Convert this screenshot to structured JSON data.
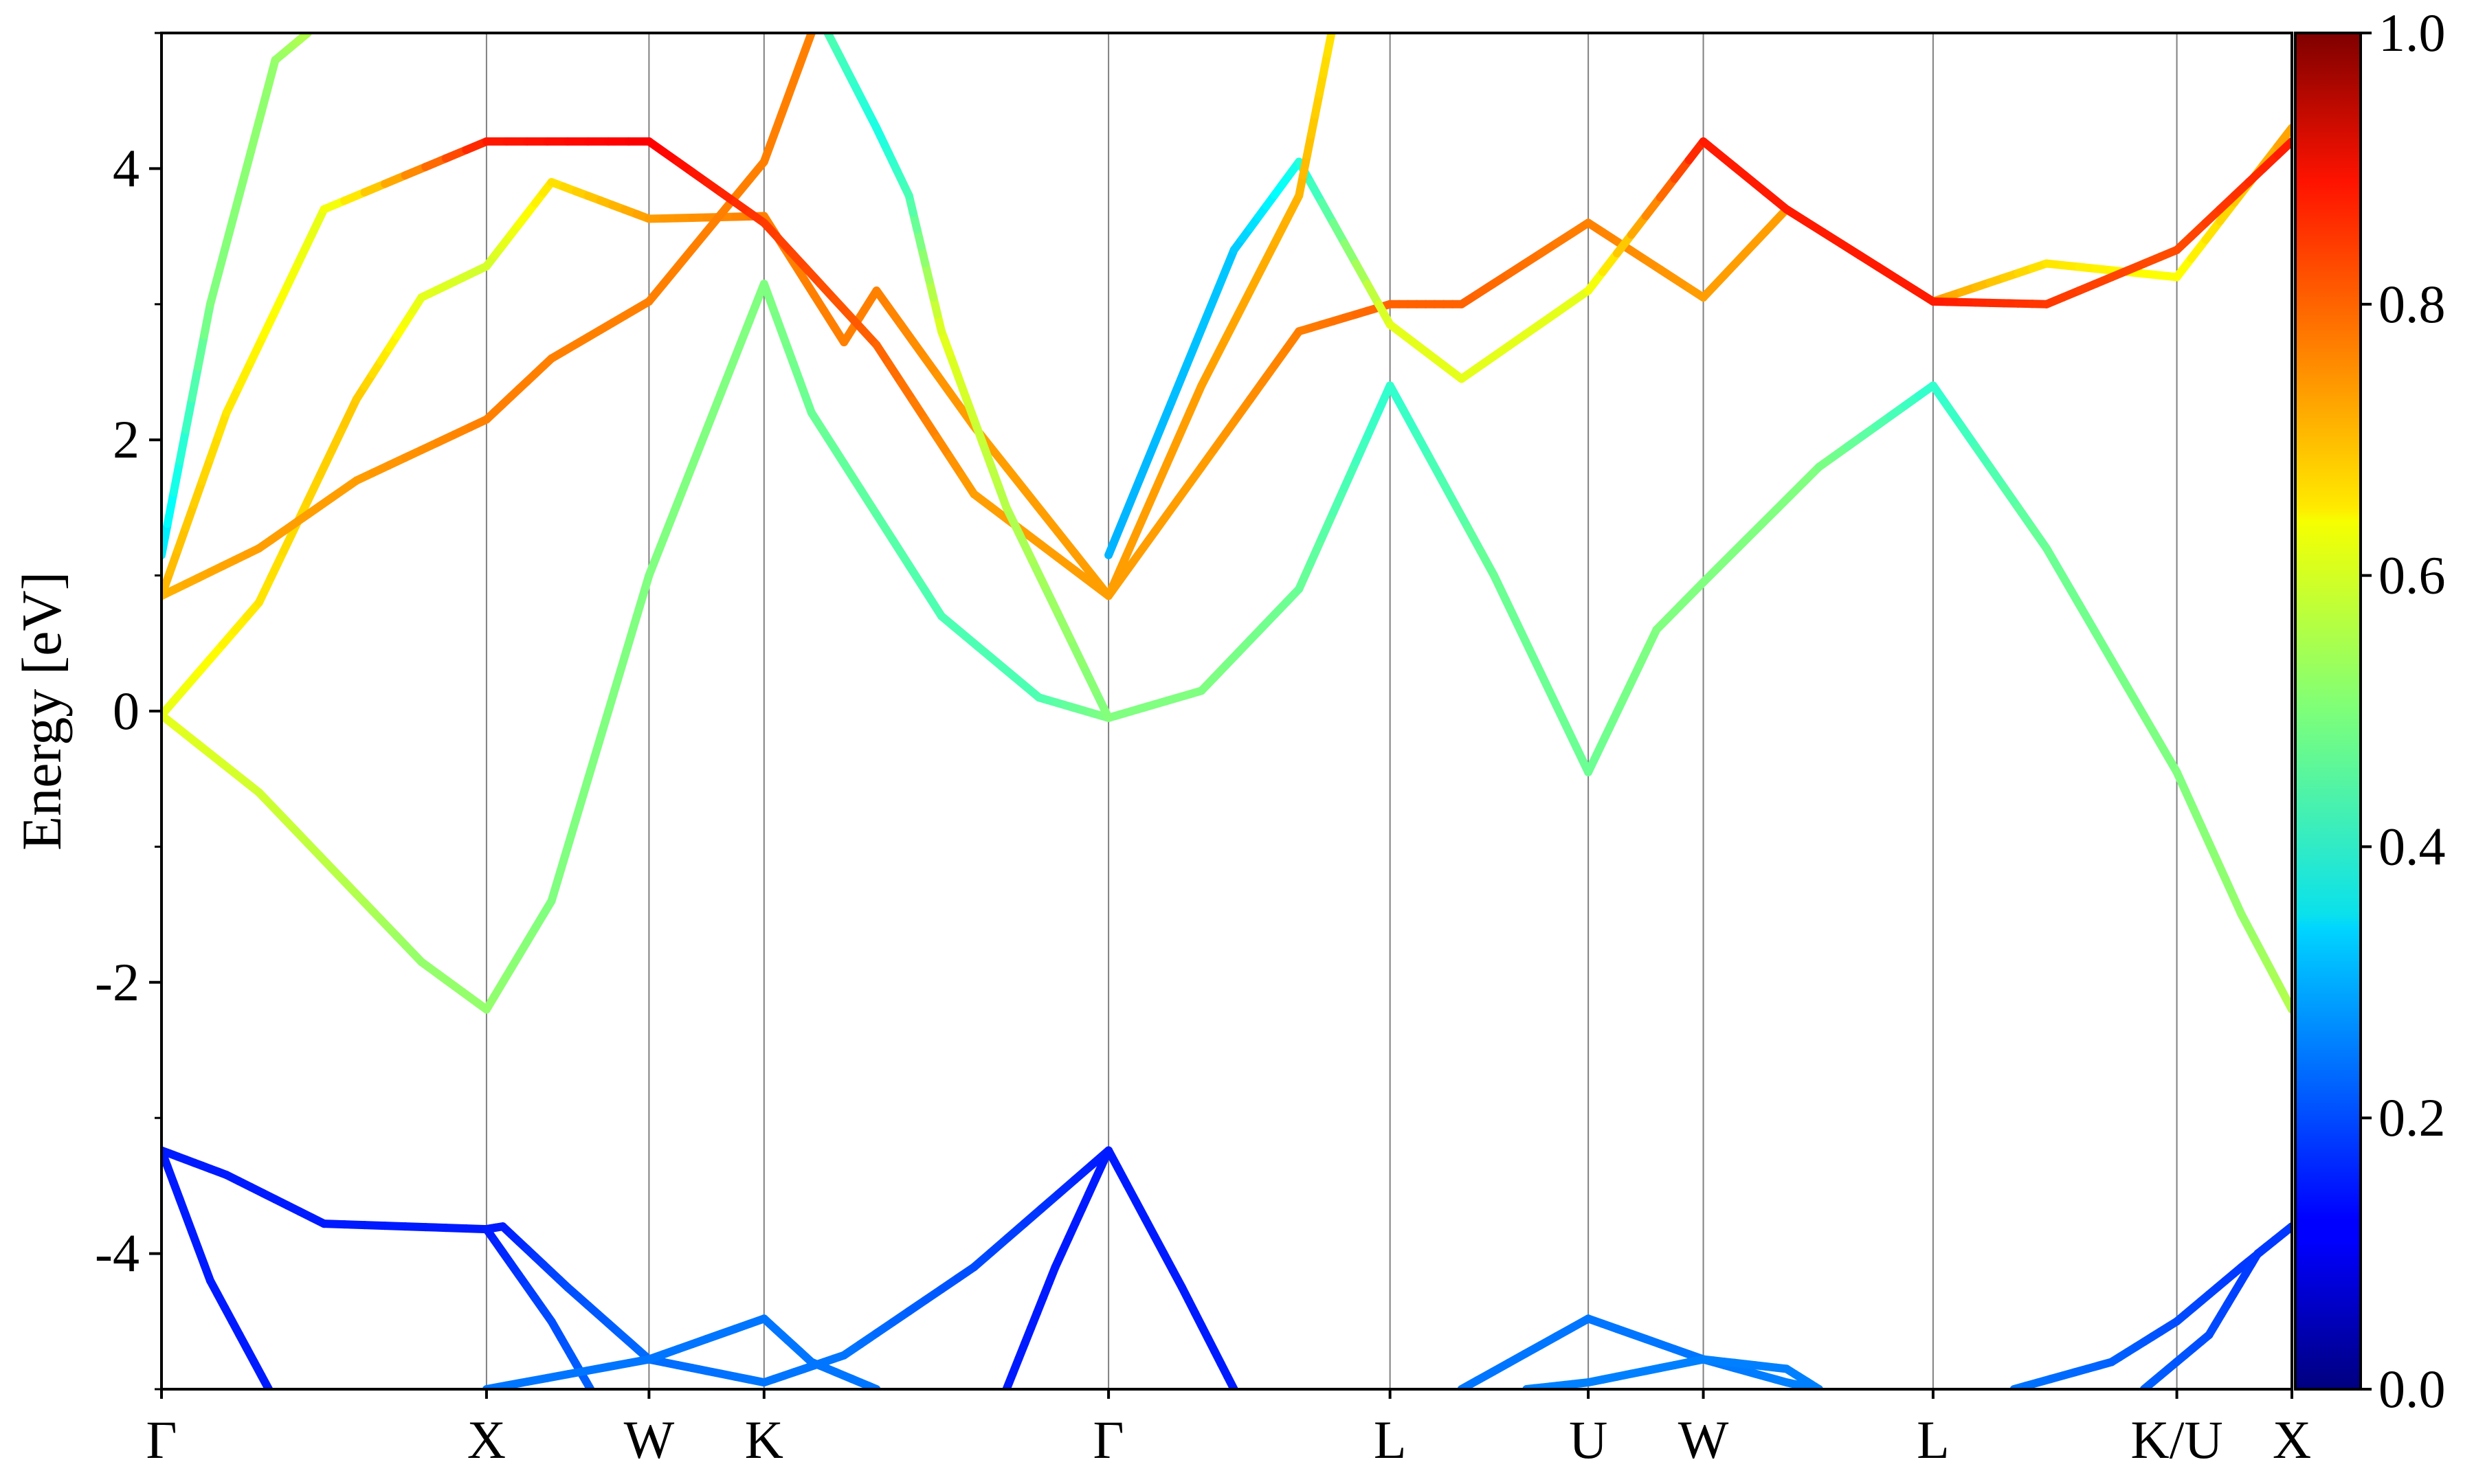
{
  "chart_data": {
    "type": "line",
    "title": "",
    "xlabel": "",
    "ylabel": "Energy [eV]",
    "ylim": [
      -5,
      5
    ],
    "yticks": [
      "-4",
      "-2",
      "0",
      "2",
      "4"
    ],
    "grid": "vertical lines at high-symmetry points",
    "high_symmetry_points": [
      {
        "label": "Γ",
        "k": 0.0
      },
      {
        "label": "X",
        "k": 1.0
      },
      {
        "label": "W",
        "k": 1.5
      },
      {
        "label": "K",
        "k": 1.854
      },
      {
        "label": "Γ",
        "k": 2.914
      },
      {
        "label": "L",
        "k": 3.78
      },
      {
        "label": "U",
        "k": 4.39
      },
      {
        "label": "W",
        "k": 4.744
      },
      {
        "label": "L",
        "k": 5.451
      },
      {
        "label": "K/U",
        "k": 6.201
      },
      {
        "label": "X",
        "k": 6.555
      }
    ],
    "colorbar": {
      "colormap": "jet",
      "range": [
        0.0,
        1.0
      ],
      "ticks": [
        "0.0",
        "0.2",
        "0.4",
        "0.6",
        "0.8",
        "1.0"
      ]
    },
    "series": [
      {
        "values": [
          [
            0.0,
            -3.24,
            0.15
          ],
          [
            0.15,
            -4.2,
            0.15
          ],
          [
            0.33,
            -5.0,
            0.15
          ]
        ]
      },
      {
        "values": [
          [
            0.0,
            -3.24,
            0.15
          ],
          [
            0.2,
            -3.42,
            0.15
          ],
          [
            0.5,
            -3.78,
            0.15
          ],
          [
            1.0,
            -3.82,
            0.15
          ],
          [
            1.05,
            -3.8,
            0.15
          ],
          [
            1.25,
            -4.25,
            0.2
          ],
          [
            1.5,
            -4.78,
            0.23
          ],
          [
            1.854,
            -4.95,
            0.24
          ],
          [
            2.1,
            -4.75,
            0.24
          ],
          [
            2.5,
            -4.1,
            0.2
          ],
          [
            2.914,
            -3.24,
            0.15
          ]
        ]
      },
      {
        "values": [
          [
            1.0,
            -3.82,
            0.15
          ],
          [
            1.2,
            -4.5,
            0.2
          ],
          [
            1.32,
            -5.0,
            0.22
          ]
        ]
      },
      {
        "values": [
          [
            1.0,
            -5.0,
            0.24
          ],
          [
            1.5,
            -4.78,
            0.24
          ],
          [
            1.854,
            -4.48,
            0.24
          ],
          [
            2.0,
            -4.8,
            0.24
          ],
          [
            2.2,
            -5.0,
            0.24
          ]
        ]
      },
      {
        "values": [
          [
            2.914,
            -3.24,
            0.15
          ],
          [
            3.14,
            -4.25,
            0.15
          ],
          [
            3.3,
            -5.0,
            0.15
          ]
        ]
      },
      {
        "values": [
          [
            2.914,
            -3.24,
            0.15
          ],
          [
            2.75,
            -4.1,
            0.15
          ],
          [
            2.6,
            -5.0,
            0.15
          ]
        ]
      },
      {
        "values": [
          [
            4.0,
            -5.0,
            0.24
          ],
          [
            4.39,
            -4.48,
            0.24
          ],
          [
            4.744,
            -4.78,
            0.24
          ],
          [
            5.0,
            -4.95,
            0.25
          ],
          [
            5.1,
            -5.0,
            0.25
          ]
        ]
      },
      {
        "values": [
          [
            4.2,
            -5.0,
            0.25
          ],
          [
            4.39,
            -4.95,
            0.25
          ],
          [
            4.744,
            -4.78,
            0.25
          ],
          [
            5.0,
            -4.85,
            0.25
          ],
          [
            5.1,
            -5.0,
            0.25
          ]
        ]
      },
      {
        "values": [
          [
            5.7,
            -5.0,
            0.24
          ],
          [
            6.0,
            -4.8,
            0.22
          ],
          [
            6.201,
            -4.5,
            0.2
          ],
          [
            6.4,
            -4.1,
            0.18
          ],
          [
            6.555,
            -3.8,
            0.18
          ]
        ]
      },
      {
        "values": [
          [
            6.1,
            -5.0,
            0.22
          ],
          [
            6.3,
            -4.6,
            0.2
          ],
          [
            6.45,
            -4.0,
            0.18
          ],
          [
            6.555,
            -3.8,
            0.18
          ]
        ]
      },
      {
        "values": [
          [
            0.0,
            -0.03,
            0.6
          ],
          [
            0.3,
            -0.6,
            0.58
          ],
          [
            0.6,
            -1.35,
            0.55
          ],
          [
            0.8,
            -1.85,
            0.52
          ],
          [
            1.0,
            -2.2,
            0.52
          ],
          [
            1.2,
            -1.4,
            0.5
          ],
          [
            1.5,
            1.0,
            0.5
          ],
          [
            1.854,
            3.15,
            0.5
          ],
          [
            2.0,
            2.2,
            0.48
          ],
          [
            2.4,
            0.7,
            0.45
          ],
          [
            2.7,
            0.1,
            0.45
          ],
          [
            2.914,
            -0.05,
            0.5
          ],
          [
            3.2,
            0.15,
            0.5
          ],
          [
            3.5,
            0.9,
            0.48
          ],
          [
            3.78,
            2.4,
            0.42
          ],
          [
            4.1,
            1.0,
            0.48
          ],
          [
            4.39,
            -0.45,
            0.48
          ],
          [
            4.6,
            0.6,
            0.5
          ],
          [
            4.744,
            0.95,
            0.5
          ],
          [
            5.1,
            1.8,
            0.5
          ],
          [
            5.451,
            2.4,
            0.42
          ],
          [
            5.8,
            1.2,
            0.48
          ],
          [
            6.201,
            -0.45,
            0.5
          ],
          [
            6.4,
            -1.5,
            0.52
          ],
          [
            6.555,
            -2.2,
            0.55
          ]
        ]
      },
      {
        "values": [
          [
            0.0,
            -0.03,
            0.6
          ],
          [
            0.3,
            0.8,
            0.65
          ],
          [
            0.6,
            2.3,
            0.68
          ],
          [
            0.8,
            3.05,
            0.6
          ],
          [
            1.0,
            3.28,
            0.58
          ],
          [
            1.2,
            3.9,
            0.65
          ],
          [
            1.5,
            3.63,
            0.72
          ],
          [
            1.854,
            3.65,
            0.75
          ],
          [
            2.1,
            2.72,
            0.75
          ],
          [
            2.2,
            3.1,
            0.75
          ],
          [
            2.5,
            2.1,
            0.72
          ],
          [
            2.914,
            0.85,
            0.72
          ],
          [
            3.2,
            1.8,
            0.72
          ],
          [
            3.5,
            2.8,
            0.75
          ],
          [
            3.78,
            3.0,
            0.78
          ],
          [
            4.0,
            3.0,
            0.78
          ],
          [
            4.39,
            3.6,
            0.75
          ],
          [
            4.744,
            3.05,
            0.72
          ],
          [
            5.0,
            3.7,
            0.72
          ],
          [
            5.451,
            3.02,
            0.72
          ],
          [
            5.8,
            3.3,
            0.65
          ],
          [
            6.201,
            3.2,
            0.62
          ],
          [
            6.555,
            4.3,
            0.72
          ]
        ]
      },
      {
        "values": [
          [
            0.0,
            0.85,
            0.7
          ],
          [
            0.3,
            1.2,
            0.72
          ],
          [
            0.6,
            1.7,
            0.72
          ],
          [
            1.0,
            2.15,
            0.75
          ],
          [
            1.2,
            2.6,
            0.75
          ],
          [
            1.5,
            3.02,
            0.75
          ],
          [
            1.854,
            4.05,
            0.75
          ],
          [
            2.0,
            5.0,
            0.75
          ]
        ]
      },
      {
        "values": [
          [
            0.0,
            0.85,
            0.7
          ],
          [
            0.2,
            2.2,
            0.65
          ],
          [
            0.5,
            3.7,
            0.6
          ],
          [
            1.0,
            4.2,
            0.85
          ],
          [
            1.5,
            4.2,
            0.88
          ],
          [
            1.854,
            3.6,
            0.82
          ],
          [
            2.2,
            2.7,
            0.78
          ],
          [
            2.5,
            1.6,
            0.72
          ],
          [
            2.914,
            0.85,
            0.72
          ]
        ]
      },
      {
        "values": [
          [
            0.0,
            1.15,
            0.35
          ],
          [
            0.15,
            3.0,
            0.5
          ],
          [
            0.35,
            4.8,
            0.52
          ],
          [
            0.45,
            5.0,
            0.55
          ]
        ]
      },
      {
        "values": [
          [
            2.914,
            1.15,
            0.3
          ],
          [
            3.3,
            3.4,
            0.32
          ],
          [
            3.5,
            4.05,
            0.4
          ],
          [
            3.78,
            2.85,
            0.6
          ],
          [
            4.0,
            2.45,
            0.6
          ],
          [
            4.39,
            3.1,
            0.6
          ],
          [
            4.744,
            4.2,
            0.85
          ],
          [
            5.0,
            3.7,
            0.85
          ],
          [
            5.451,
            3.02,
            0.85
          ],
          [
            5.8,
            3.0,
            0.82
          ],
          [
            6.201,
            3.4,
            0.8
          ],
          [
            6.555,
            4.2,
            0.85
          ]
        ]
      },
      {
        "values": [
          [
            2.914,
            -0.05,
            0.5
          ],
          [
            2.6,
            1.5,
            0.55
          ],
          [
            2.4,
            2.8,
            0.6
          ],
          [
            2.3,
            3.8,
            0.45
          ],
          [
            2.2,
            4.3,
            0.4
          ],
          [
            2.05,
            5.0,
            0.45
          ]
        ]
      },
      {
        "values": [
          [
            2.914,
            0.85,
            0.72
          ],
          [
            3.2,
            2.4,
            0.72
          ],
          [
            3.5,
            3.8,
            0.7
          ],
          [
            3.6,
            5.0,
            0.65
          ]
        ]
      }
    ]
  }
}
